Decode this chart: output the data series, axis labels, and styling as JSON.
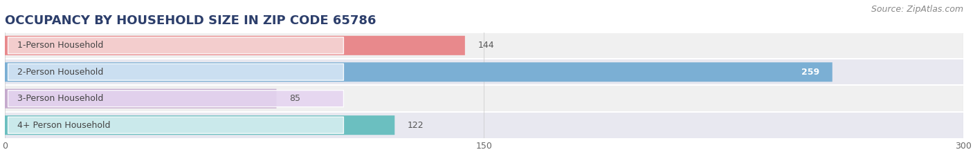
{
  "title": "OCCUPANCY BY HOUSEHOLD SIZE IN ZIP CODE 65786",
  "source": "Source: ZipAtlas.com",
  "categories": [
    "1-Person Household",
    "2-Person Household",
    "3-Person Household",
    "4+ Person Household"
  ],
  "values": [
    144,
    259,
    85,
    122
  ],
  "bar_colors": [
    "#E8898C",
    "#7BAFD4",
    "#C5AACD",
    "#6BBFC0"
  ],
  "row_bg_colors": [
    "#F0F0F0",
    "#E8E8F0",
    "#F0F0F0",
    "#E8E8F0"
  ],
  "label_bg_colors": [
    "#F5D5D5",
    "#D5E5F5",
    "#E5D5F0",
    "#D5EEF0"
  ],
  "xlim": [
    0,
    300
  ],
  "xticks": [
    0,
    150,
    300
  ],
  "title_fontsize": 13,
  "source_fontsize": 9,
  "bar_label_fontsize": 9,
  "value_fontsize": 9,
  "figsize": [
    14.06,
    2.33
  ],
  "dpi": 100
}
